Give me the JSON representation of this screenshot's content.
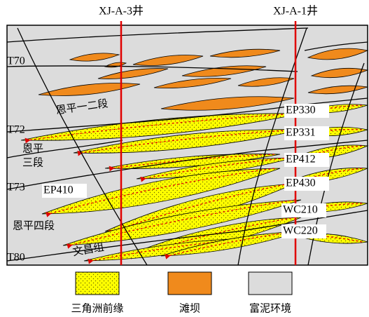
{
  "wells": [
    {
      "label": "XJ-A-3井"
    },
    {
      "label": "XJ-A-1井"
    }
  ],
  "horizons": [
    "T70",
    "T72",
    "T73",
    "T80"
  ],
  "formations": [
    "恩平一二段",
    "恩平",
    "三段",
    "恩平四段",
    "文昌组"
  ],
  "sand_bodies": [
    "EP330",
    "EP331",
    "EP412",
    "EP430",
    "WC210",
    "WC220",
    "EP410"
  ],
  "legend": [
    {
      "label": "三角洲前缘"
    },
    {
      "label": "滩坝"
    },
    {
      "label": "富泥环境"
    }
  ]
}
